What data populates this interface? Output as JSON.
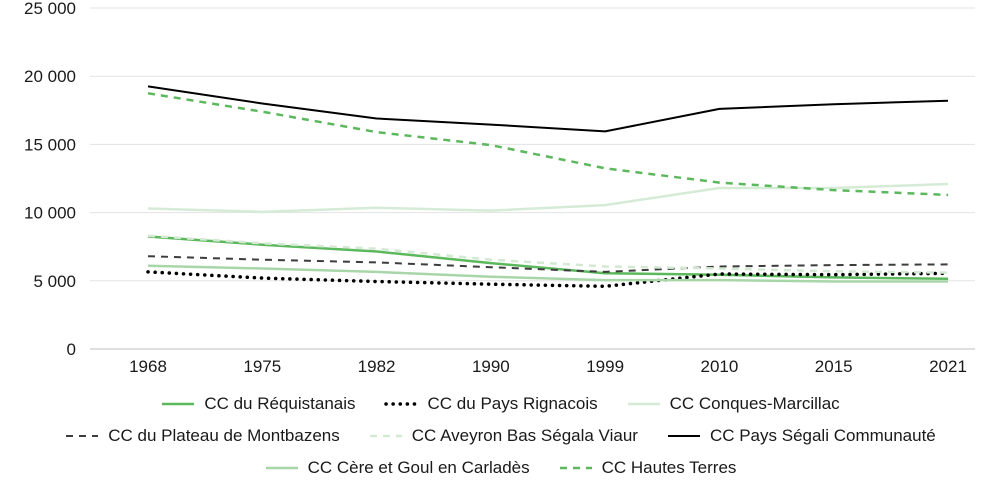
{
  "chart_data": {
    "type": "line",
    "title": "",
    "xlabel": "",
    "ylabel": "",
    "ylim": [
      0,
      25000
    ],
    "y_ticks": [
      {
        "value": 0,
        "label": "0"
      },
      {
        "value": 5000,
        "label": "5 000"
      },
      {
        "value": 10000,
        "label": "10 000"
      },
      {
        "value": 15000,
        "label": "15 000"
      },
      {
        "value": 20000,
        "label": "20 000"
      },
      {
        "value": 25000,
        "label": "25 000"
      }
    ],
    "categories": [
      "1968",
      "1975",
      "1982",
      "1990",
      "1999",
      "2010",
      "2015",
      "2021"
    ],
    "grid": "horizontal",
    "legend_position": "bottom",
    "series": [
      {
        "name": "CC du Réquistanais",
        "values": [
          8250,
          7650,
          7150,
          6300,
          5550,
          5450,
          5250,
          5150
        ],
        "color": "#5cb85c",
        "style": "solid",
        "width": 2.5
      },
      {
        "name": "CC du Pays Rignacois",
        "values": [
          5650,
          5200,
          4950,
          4750,
          4600,
          5500,
          5450,
          5550
        ],
        "color": "#000000",
        "style": "dotted",
        "width": 3.5
      },
      {
        "name": "CC Conques-Marcillac",
        "values": [
          10300,
          10050,
          10350,
          10150,
          10550,
          11800,
          11800,
          12100
        ],
        "color": "#d6ebd6",
        "style": "solid",
        "width": 2.5
      },
      {
        "name": "CC du Plateau de Montbazens",
        "values": [
          6800,
          6550,
          6350,
          6000,
          5650,
          6050,
          6150,
          6200
        ],
        "color": "#3d3d3d",
        "style": "dashed",
        "width": 2
      },
      {
        "name": "CC Aveyron Bas Ségala Viaur",
        "values": [
          8300,
          7750,
          7350,
          6550,
          6050,
          5900,
          5700,
          5600
        ],
        "color": "#d3e9d3",
        "style": "dashed",
        "width": 2.5
      },
      {
        "name": "CC Pays Ségali Communauté",
        "values": [
          19250,
          18000,
          16900,
          16450,
          15950,
          17600,
          17950,
          18200
        ],
        "color": "#000000",
        "style": "solid",
        "width": 2
      },
      {
        "name": "CC Cère et Goul en Carladès",
        "values": [
          6100,
          5900,
          5650,
          5300,
          5050,
          5050,
          4950,
          4950
        ],
        "color": "#a9d6a9",
        "style": "solid",
        "width": 2.5
      },
      {
        "name": "CC Hautes Terres",
        "values": [
          18750,
          17400,
          15900,
          14950,
          13250,
          12200,
          11650,
          11300
        ],
        "color": "#5cb85c",
        "style": "dashed",
        "width": 2.5
      }
    ]
  },
  "legend_rows": [
    [
      0,
      1,
      2
    ],
    [
      3,
      4,
      5
    ],
    [
      6,
      7
    ]
  ]
}
